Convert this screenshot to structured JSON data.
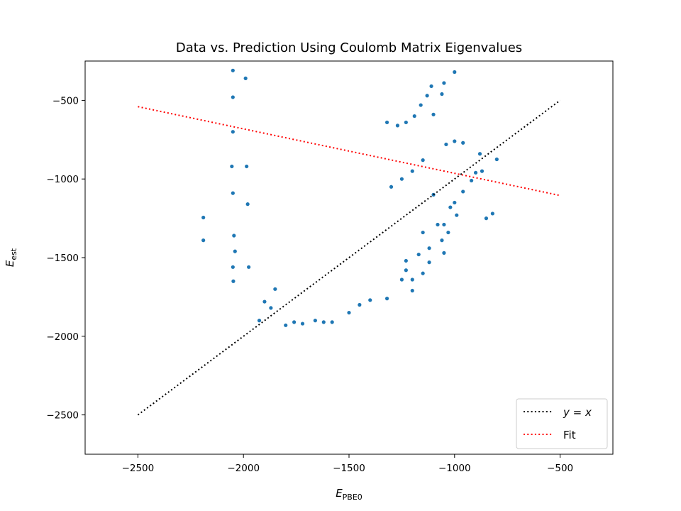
{
  "chart_data": {
    "type": "scatter",
    "title": "Data vs. Prediction Using Coulomb Matrix Eigenvalues",
    "xlabel": {
      "main": "E",
      "sub": "PBE0"
    },
    "ylabel": {
      "main": "E",
      "sub": "est"
    },
    "xlim": [
      -2750,
      -250
    ],
    "ylim": [
      -2750,
      -250
    ],
    "xticks": [
      {
        "value": -2500,
        "label": "−2500"
      },
      {
        "value": -2000,
        "label": "−2000"
      },
      {
        "value": -1500,
        "label": "−1500"
      },
      {
        "value": -1000,
        "label": "−1000"
      },
      {
        "value": -500,
        "label": "−500"
      }
    ],
    "yticks": [
      {
        "value": -2500,
        "label": "−2500"
      },
      {
        "value": -2000,
        "label": "−2000"
      },
      {
        "value": -1500,
        "label": "−1500"
      },
      {
        "value": -1000,
        "label": "−1000"
      },
      {
        "value": -500,
        "label": "−500"
      }
    ],
    "grid": false,
    "legend_position": "lower-right",
    "series": [
      {
        "kind": "scatter",
        "color": "#1f77b4",
        "points": [
          [
            -2190,
            -1245
          ],
          [
            -2190,
            -1390
          ],
          [
            -2050,
            -310
          ],
          [
            -2050,
            -480
          ],
          [
            -2050,
            -700
          ],
          [
            -2055,
            -920
          ],
          [
            -2050,
            -1090
          ],
          [
            -2045,
            -1360
          ],
          [
            -2050,
            -1560
          ],
          [
            -2048,
            -1650
          ],
          [
            -2040,
            -1460
          ],
          [
            -1990,
            -360
          ],
          [
            -1985,
            -920
          ],
          [
            -1980,
            -1160
          ],
          [
            -1975,
            -1560
          ],
          [
            -1925,
            -1900
          ],
          [
            -1900,
            -1780
          ],
          [
            -1870,
            -1820
          ],
          [
            -1850,
            -1700
          ],
          [
            -1800,
            -1930
          ],
          [
            -1760,
            -1910
          ],
          [
            -1720,
            -1920
          ],
          [
            -1660,
            -1900
          ],
          [
            -1620,
            -1910
          ],
          [
            -1580,
            -1910
          ],
          [
            -1500,
            -1850
          ],
          [
            -1450,
            -1800
          ],
          [
            -1400,
            -1770
          ],
          [
            -1320,
            -1760
          ],
          [
            -1200,
            -1710
          ],
          [
            -1250,
            -1640
          ],
          [
            -1230,
            -1580
          ],
          [
            -1200,
            -1640
          ],
          [
            -1150,
            -1600
          ],
          [
            -1120,
            -1530
          ],
          [
            -1050,
            -1470
          ],
          [
            -1060,
            -1390
          ],
          [
            -1030,
            -1340
          ],
          [
            -1050,
            -1290
          ],
          [
            -1000,
            -1150
          ],
          [
            -960,
            -1080
          ],
          [
            -920,
            -1010
          ],
          [
            -900,
            -960
          ],
          [
            -870,
            -950
          ],
          [
            -800,
            -875
          ],
          [
            -850,
            -1250
          ],
          [
            -820,
            -1220
          ],
          [
            -880,
            -840
          ],
          [
            -960,
            -770
          ],
          [
            -1000,
            -760
          ],
          [
            -1040,
            -780
          ],
          [
            -1050,
            -390
          ],
          [
            -1060,
            -460
          ],
          [
            -1110,
            -410
          ],
          [
            -1130,
            -470
          ],
          [
            -1160,
            -530
          ],
          [
            -1190,
            -600
          ],
          [
            -1230,
            -640
          ],
          [
            -1270,
            -660
          ],
          [
            -1320,
            -640
          ],
          [
            -1000,
            -320
          ],
          [
            -1100,
            -590
          ],
          [
            -1150,
            -880
          ],
          [
            -1200,
            -950
          ],
          [
            -1250,
            -1000
          ],
          [
            -1300,
            -1050
          ],
          [
            -1100,
            -1100
          ],
          [
            -1020,
            -1180
          ],
          [
            -990,
            -1230
          ],
          [
            -1080,
            -1290
          ],
          [
            -1150,
            -1340
          ],
          [
            -1120,
            -1440
          ],
          [
            -1170,
            -1480
          ],
          [
            -1230,
            -1520
          ]
        ]
      },
      {
        "kind": "line",
        "name": "y = x",
        "label_tex": [
          "y",
          " = ",
          "x"
        ],
        "color": "#000000",
        "x": [
          -2500,
          -500
        ],
        "y": [
          -2500,
          -500
        ]
      },
      {
        "kind": "line",
        "name": "Fit",
        "label_tex": [
          "Fit"
        ],
        "color": "#ff0000",
        "x": [
          -2500,
          -500
        ],
        "y": [
          -540,
          -1105
        ]
      }
    ]
  }
}
